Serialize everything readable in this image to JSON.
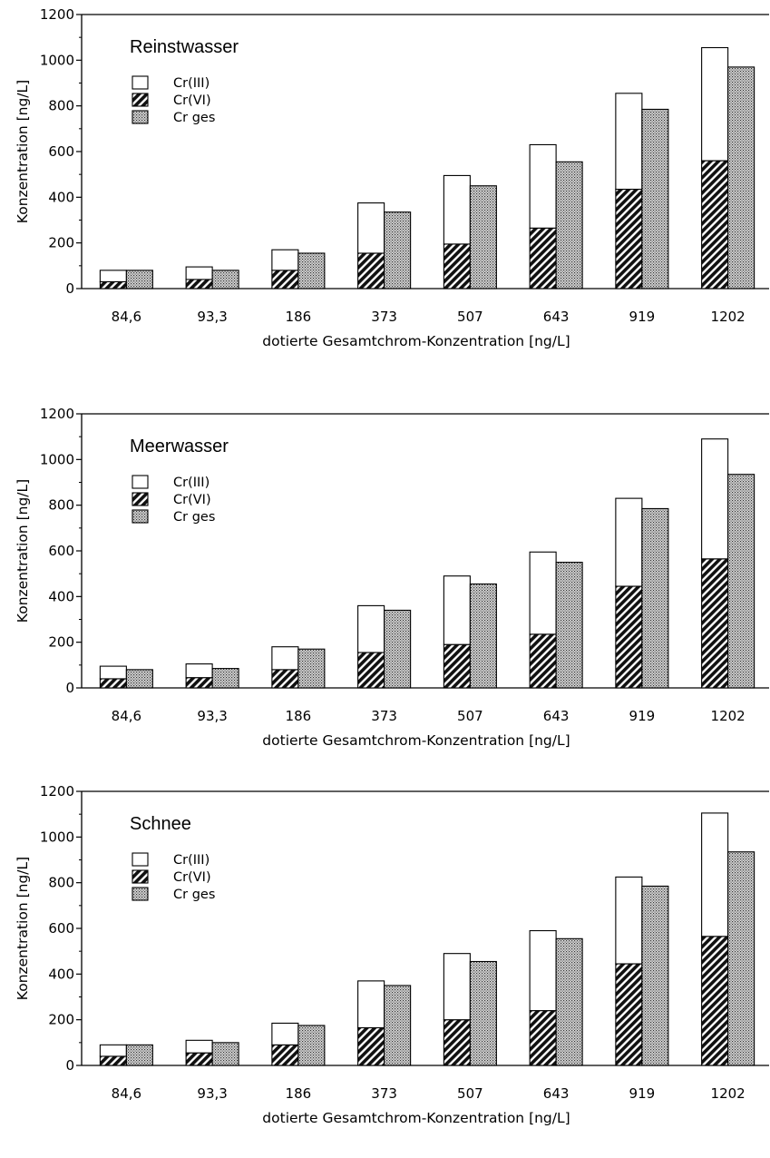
{
  "chart_data": [
    {
      "type": "bar",
      "title": "Reinstwasser",
      "xlabel": "dotierte Gesamtchrom-Konzentration [ng/L]",
      "ylabel": "Konzentration [ng/L]",
      "ylim": [
        0,
        1200
      ],
      "yticks": [
        "0",
        "200",
        "400",
        "600",
        "800",
        "1000",
        "1200"
      ],
      "categories": [
        "84,6",
        "93,3",
        "186",
        "373",
        "507",
        "643",
        "919",
        "1202"
      ],
      "legend": [
        "Cr(III)",
        "Cr(VI)",
        "Cr ges"
      ],
      "legend_position": "top-left",
      "series": [
        {
          "name": "Cr(VI)",
          "values": [
            30,
            40,
            80,
            155,
            195,
            265,
            435,
            560
          ]
        },
        {
          "name": "Cr(III)",
          "values": [
            50,
            55,
            90,
            220,
            300,
            365,
            420,
            495
          ]
        },
        {
          "name": "Cr ges",
          "values": [
            80,
            80,
            155,
            335,
            450,
            555,
            785,
            970
          ]
        }
      ]
    },
    {
      "type": "bar",
      "title": "Meerwasser",
      "xlabel": "dotierte Gesamtchrom-Konzentration [ng/L]",
      "ylabel": "Konzentration [ng/L]",
      "ylim": [
        0,
        1200
      ],
      "yticks": [
        "0",
        "200",
        "400",
        "600",
        "800",
        "1000",
        "1200"
      ],
      "categories": [
        "84,6",
        "93,3",
        "186",
        "373",
        "507",
        "643",
        "919",
        "1202"
      ],
      "legend": [
        "Cr(III)",
        "Cr(VI)",
        "Cr ges"
      ],
      "legend_position": "top-left",
      "series": [
        {
          "name": "Cr(VI)",
          "values": [
            40,
            45,
            80,
            155,
            190,
            235,
            445,
            565
          ]
        },
        {
          "name": "Cr(III)",
          "values": [
            55,
            60,
            100,
            205,
            300,
            360,
            385,
            525
          ]
        },
        {
          "name": "Cr ges",
          "values": [
            80,
            85,
            170,
            340,
            455,
            550,
            785,
            935
          ]
        }
      ]
    },
    {
      "type": "bar",
      "title": "Schnee",
      "xlabel": "dotierte Gesamtchrom-Konzentration [ng/L]",
      "ylabel": "Konzentration [ng/L]",
      "ylim": [
        0,
        1200
      ],
      "yticks": [
        "0",
        "200",
        "400",
        "600",
        "800",
        "1000",
        "1200"
      ],
      "categories": [
        "84,6",
        "93,3",
        "186",
        "373",
        "507",
        "643",
        "919",
        "1202"
      ],
      "legend": [
        "Cr(III)",
        "Cr(VI)",
        "Cr ges"
      ],
      "legend_position": "top-left",
      "series": [
        {
          "name": "Cr(VI)",
          "values": [
            40,
            55,
            90,
            165,
            200,
            240,
            445,
            565
          ]
        },
        {
          "name": "Cr(III)",
          "values": [
            50,
            55,
            95,
            205,
            290,
            350,
            380,
            540
          ]
        },
        {
          "name": "Cr ges",
          "values": [
            90,
            100,
            175,
            350,
            455,
            555,
            785,
            935
          ]
        }
      ]
    }
  ]
}
